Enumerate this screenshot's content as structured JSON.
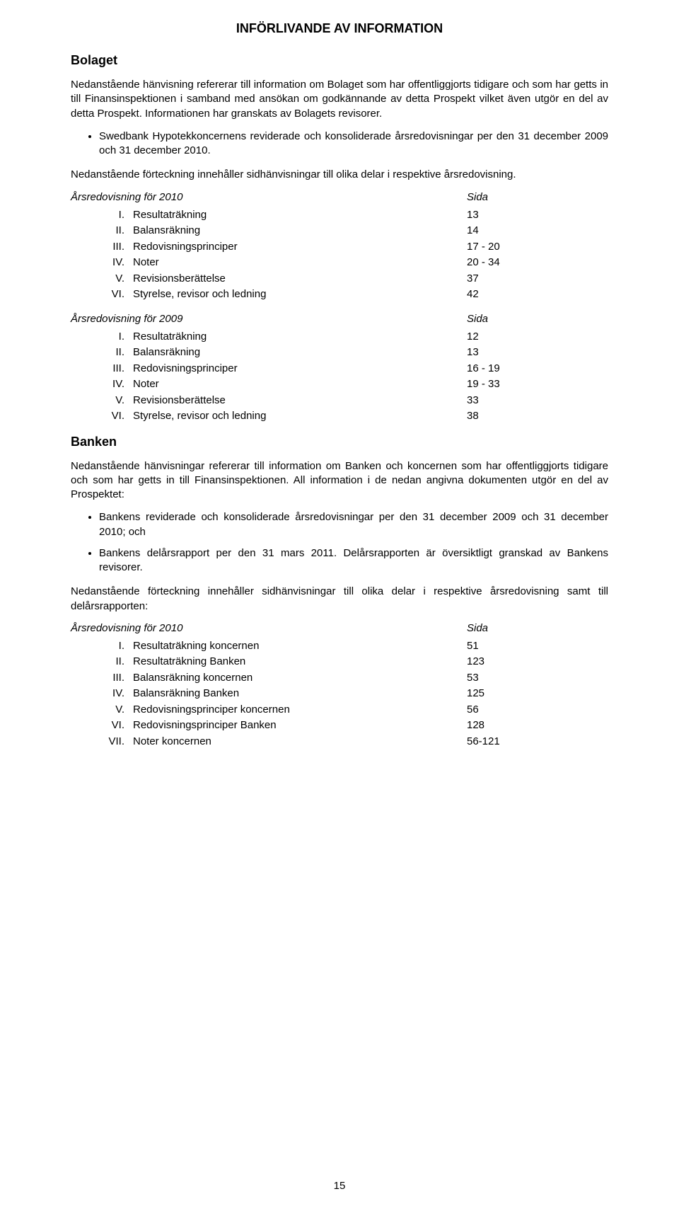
{
  "colors": {
    "text": "#000000",
    "background": "#ffffff"
  },
  "typography": {
    "body_font_size": 15,
    "heading_font_size": 18,
    "font_family": "Arial, Helvetica, sans-serif"
  },
  "title": "INFÖRLIVANDE AV INFORMATION",
  "bolaget": {
    "heading": "Bolaget",
    "para1": "Nedanstående hänvisning refererar till information om Bolaget som har offentliggjorts tidigare och som har getts in till Finansinspektionen i samband med ansökan om godkännande av detta Prospekt vilket även utgör en del av detta Prospekt. Informationen har granskats av Bolagets revisorer.",
    "bullet1": "Swedbank Hypotekkoncernens reviderade och konsoliderade årsredovisningar per den 31 december 2009 och 31 december 2010.",
    "para2": "Nedanstående förteckning innehåller sidhänvisningar till olika delar i respektive årsredovisning.",
    "toc2010": {
      "title": "Årsredovisning för 2010",
      "sida": "Sida",
      "items": [
        {
          "roman": "I.",
          "label": "Resultaträkning",
          "page": "13"
        },
        {
          "roman": "II.",
          "label": "Balansräkning",
          "page": "14"
        },
        {
          "roman": "III.",
          "label": "Redovisningsprinciper",
          "page": "17 - 20"
        },
        {
          "roman": "IV.",
          "label": "Noter",
          "page": "20 - 34"
        },
        {
          "roman": "V.",
          "label": "Revisionsberättelse",
          "page": "37"
        },
        {
          "roman": "VI.",
          "label": "Styrelse, revisor och ledning",
          "page": "42"
        }
      ]
    },
    "toc2009": {
      "title": "Årsredovisning för 2009",
      "sida": "Sida",
      "items": [
        {
          "roman": "I.",
          "label": "Resultaträkning",
          "page": "12"
        },
        {
          "roman": "II.",
          "label": "Balansräkning",
          "page": "13"
        },
        {
          "roman": "III.",
          "label": "Redovisningsprinciper",
          "page": "16 - 19"
        },
        {
          "roman": "IV.",
          "label": "Noter",
          "page": "19 - 33"
        },
        {
          "roman": "V.",
          "label": "Revisionsberättelse",
          "page": "33"
        },
        {
          "roman": "VI.",
          "label": "Styrelse, revisor och ledning",
          "page": "38"
        }
      ]
    }
  },
  "banken": {
    "heading": "Banken",
    "para1": "Nedanstående hänvisningar refererar till information om Banken och koncernen som har offentliggjorts tidigare och som har getts in till Finansinspektionen. All information i de nedan angivna dokumenten utgör en del av Prospektet:",
    "bullet1": "Bankens reviderade och konsoliderade årsredovisningar per den 31 december 2009 och 31 december 2010; och",
    "bullet2": "Bankens delårsrapport per den 31 mars 2011. Delårsrapporten är översiktligt granskad av Bankens revisorer.",
    "para2": "Nedanstående förteckning innehåller sidhänvisningar till olika delar i respektive årsredovisning samt till delårsrapporten:",
    "toc2010": {
      "title": "Årsredovisning för 2010",
      "sida": "Sida",
      "items": [
        {
          "roman": "I.",
          "label": "Resultaträkning koncernen",
          "page": "51"
        },
        {
          "roman": "II.",
          "label": "Resultaträkning Banken",
          "page": "123"
        },
        {
          "roman": "III.",
          "label": "Balansräkning koncernen",
          "page": "53"
        },
        {
          "roman": "IV.",
          "label": "Balansräkning Banken",
          "page": "125"
        },
        {
          "roman": "V.",
          "label": "Redovisningsprinciper koncernen",
          "page": "56"
        },
        {
          "roman": "VI.",
          "label": "Redovisningsprinciper Banken",
          "page": "128"
        },
        {
          "roman": "VII.",
          "label": "Noter koncernen",
          "page": "56-121"
        }
      ]
    }
  },
  "page_number": "15"
}
